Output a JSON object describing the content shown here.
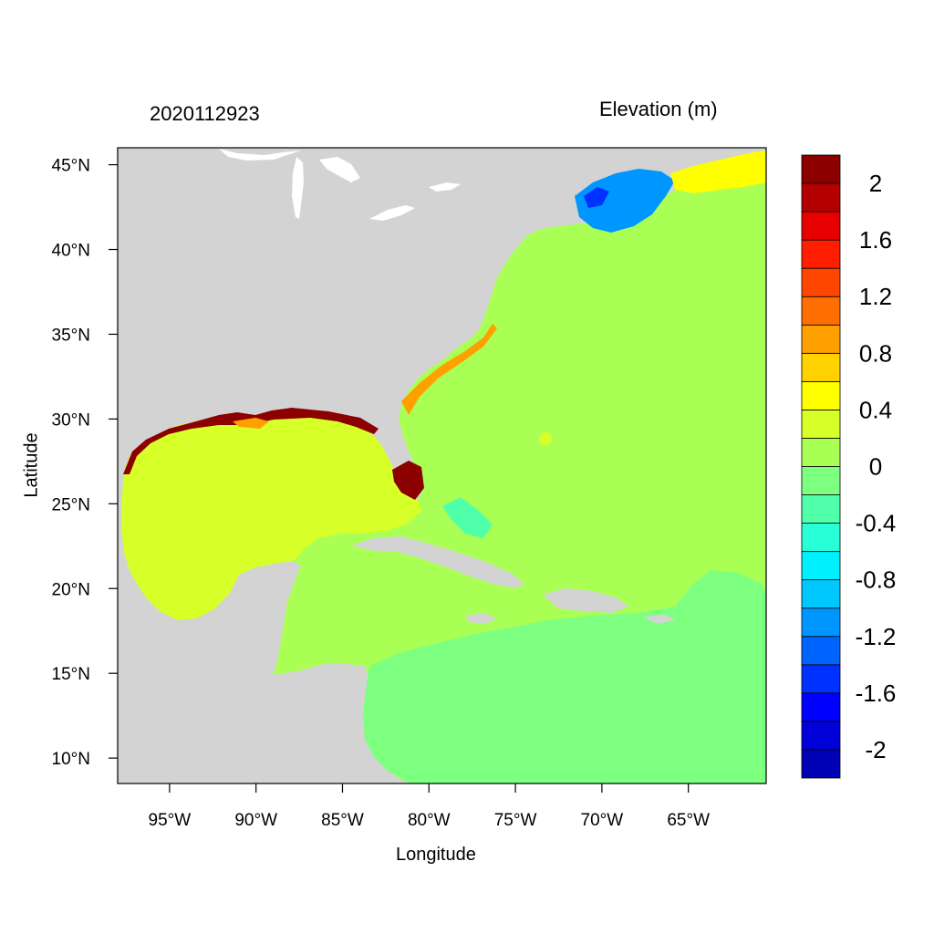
{
  "time_label": "2020112923",
  "variable_label": "Elevation (m)",
  "xaxis_title": "Longitude",
  "yaxis_title": "Latitude",
  "chart_data": {
    "type": "heatmap",
    "xlim": [
      -98,
      -60.5
    ],
    "ylim": [
      8.5,
      46
    ],
    "x_ticks": [
      {
        "value": -95,
        "label": "95°W"
      },
      {
        "value": -90,
        "label": "90°W"
      },
      {
        "value": -85,
        "label": "85°W"
      },
      {
        "value": -80,
        "label": "80°W"
      },
      {
        "value": -75,
        "label": "75°W"
      },
      {
        "value": -70,
        "label": "70°W"
      },
      {
        "value": -65,
        "label": "65°W"
      }
    ],
    "y_ticks": [
      {
        "value": 45,
        "label": "45°N"
      },
      {
        "value": 40,
        "label": "40°N"
      },
      {
        "value": 35,
        "label": "35°N"
      },
      {
        "value": 30,
        "label": "30°N"
      },
      {
        "value": 25,
        "label": "25°N"
      },
      {
        "value": 20,
        "label": "20°N"
      },
      {
        "value": 15,
        "label": "15°N"
      },
      {
        "value": 10,
        "label": "10°N"
      }
    ],
    "colorbar": {
      "range": [
        -2.2,
        2.2
      ],
      "bins": [
        {
          "min": -2.2,
          "max": -2.0,
          "color": "#0000b4"
        },
        {
          "min": -2.0,
          "max": -1.8,
          "color": "#0000d8"
        },
        {
          "min": -1.8,
          "max": -1.6,
          "color": "#0000ff"
        },
        {
          "min": -1.6,
          "max": -1.4,
          "color": "#0032ff"
        },
        {
          "min": -1.4,
          "max": -1.2,
          "color": "#0064ff"
        },
        {
          "min": -1.2,
          "max": -1.0,
          "color": "#0096ff"
        },
        {
          "min": -1.0,
          "max": -0.8,
          "color": "#00c8ff"
        },
        {
          "min": -0.8,
          "max": -0.6,
          "color": "#00f0ff"
        },
        {
          "min": -0.6,
          "max": -0.4,
          "color": "#28ffd6"
        },
        {
          "min": -0.4,
          "max": -0.2,
          "color": "#50ffaa"
        },
        {
          "min": -0.2,
          "max": 0.0,
          "color": "#7dff80"
        },
        {
          "min": 0.0,
          "max": 0.2,
          "color": "#aaff55"
        },
        {
          "min": 0.2,
          "max": 0.4,
          "color": "#d7ff28"
        },
        {
          "min": 0.4,
          "max": 0.6,
          "color": "#ffff00"
        },
        {
          "min": 0.6,
          "max": 0.8,
          "color": "#ffd200"
        },
        {
          "min": 0.8,
          "max": 1.0,
          "color": "#ffa000"
        },
        {
          "min": 1.0,
          "max": 1.2,
          "color": "#ff6e00"
        },
        {
          "min": 1.2,
          "max": 1.4,
          "color": "#ff4600"
        },
        {
          "min": 1.4,
          "max": 1.6,
          "color": "#ff1e00"
        },
        {
          "min": 1.6,
          "max": 1.8,
          "color": "#e60000"
        },
        {
          "min": 1.8,
          "max": 2.0,
          "color": "#b40000"
        },
        {
          "min": 2.0,
          "max": 2.2,
          "color": "#8c0000"
        }
      ],
      "labels": [
        {
          "value": 2.0,
          "label": "2"
        },
        {
          "value": 1.6,
          "label": "1.6"
        },
        {
          "value": 1.2,
          "label": "1.2"
        },
        {
          "value": 0.8,
          "label": "0.8"
        },
        {
          "value": 0.4,
          "label": "0.4"
        },
        {
          "value": 0.0,
          "label": "0"
        },
        {
          "value": -0.4,
          "label": "-0.4"
        },
        {
          "value": -0.8,
          "label": "-0.8"
        },
        {
          "value": -1.2,
          "label": "-1.2"
        },
        {
          "value": -1.6,
          "label": "-1.6"
        },
        {
          "value": -2.0,
          "label": "-2"
        }
      ]
    },
    "colors": {
      "land": "#d3d3d3",
      "atlantic": "#aaff55",
      "gulf": "#d7ff28",
      "caribbean": "#7dff80",
      "surge_high": "#8c0000",
      "gulf_of_maine": "#0096ff"
    }
  }
}
